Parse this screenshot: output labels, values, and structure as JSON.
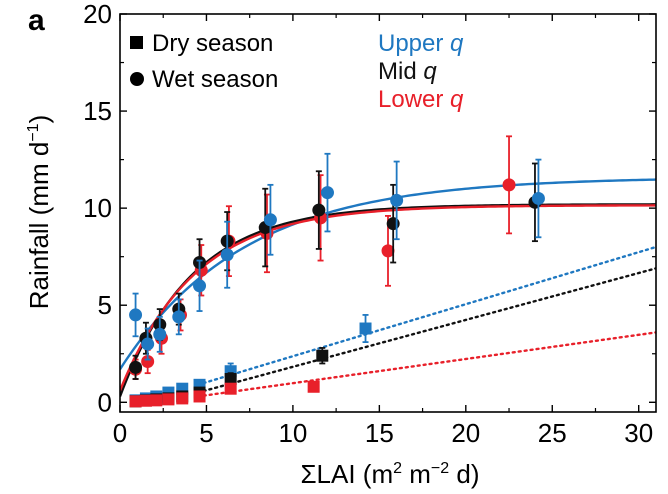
{
  "panel_label": "a",
  "legend": {
    "markers": [
      {
        "shape": "square",
        "label": "Dry season"
      },
      {
        "shape": "circle",
        "label": "Wet season"
      }
    ],
    "colors": [
      {
        "prefix": "Upper ",
        "q": "q",
        "color": "#1f78c1"
      },
      {
        "prefix": "Mid ",
        "q": "q",
        "color": "#111111"
      },
      {
        "prefix": "Lower ",
        "q": "q",
        "color": "#e8202a"
      }
    ]
  },
  "chart_data": {
    "type": "scatter",
    "title": "",
    "xlabel": "ΣLAI (m² m⁻² d)",
    "ylabel": "Rainfall (mm d⁻¹)",
    "xlabel_parts": {
      "base": "ΣLAI (m",
      "sup1": "2",
      "mid": " m",
      "sup2": "−2",
      "end": " d)"
    },
    "ylabel_parts": {
      "base": "Rainfall (mm d",
      "sup": "−1",
      "end": ")"
    },
    "xlim": [
      0,
      31
    ],
    "ylim": [
      -0.5,
      20
    ],
    "xticks": [
      0,
      5,
      10,
      15,
      20,
      25,
      30
    ],
    "yticks": [
      0,
      5,
      10,
      15,
      20
    ],
    "grid": false,
    "legend_position": "top",
    "series": [
      {
        "name": "Upper q",
        "color": "#1f78c1",
        "wet": [
          [
            0.9,
            4.5,
            1.1
          ],
          [
            1.6,
            3.0,
            0.8
          ],
          [
            2.3,
            3.5,
            0.9
          ],
          [
            3.4,
            4.4,
            0.9
          ],
          [
            4.6,
            6.0,
            1.3
          ],
          [
            6.2,
            7.6,
            1.7
          ],
          [
            8.7,
            9.4,
            1.8
          ],
          [
            12.0,
            10.8,
            2.0
          ],
          [
            16.0,
            10.4,
            2.0
          ],
          [
            24.2,
            10.5,
            2.0
          ]
        ],
        "dry": [
          [
            0.9,
            0.1,
            0.1
          ],
          [
            1.5,
            0.2,
            0.1
          ],
          [
            2.1,
            0.3,
            0.1
          ],
          [
            2.8,
            0.5,
            0.15
          ],
          [
            3.6,
            0.7,
            0.2
          ],
          [
            4.6,
            0.9,
            0.2
          ],
          [
            6.4,
            1.6,
            0.4
          ],
          [
            14.2,
            3.8,
            0.7
          ]
        ],
        "fit": {
          "asymptote": 11.6,
          "y0": 1.7,
          "k": 0.14
        },
        "trend": {
          "x0": 4.5,
          "y0": 0.9,
          "x1": 31,
          "y1": 8.0
        }
      },
      {
        "name": "Mid q",
        "color": "#111111",
        "wet": [
          [
            0.9,
            1.8,
            0.6
          ],
          [
            1.5,
            3.3,
            0.8
          ],
          [
            2.3,
            4.0,
            0.8
          ],
          [
            3.4,
            4.8,
            0.8
          ],
          [
            4.6,
            7.2,
            1.2
          ],
          [
            6.2,
            8.3,
            1.5
          ],
          [
            8.4,
            9.0,
            2.0
          ],
          [
            11.5,
            9.9,
            2.0
          ],
          [
            15.8,
            9.2,
            2.0
          ],
          [
            24.0,
            10.3,
            2.0
          ]
        ],
        "dry": [
          [
            0.9,
            0.05,
            0.1
          ],
          [
            1.5,
            0.1,
            0.1
          ],
          [
            2.1,
            0.15,
            0.1
          ],
          [
            2.8,
            0.2,
            0.1
          ],
          [
            3.6,
            0.3,
            0.1
          ],
          [
            4.6,
            0.5,
            0.15
          ],
          [
            6.4,
            1.2,
            0.3
          ],
          [
            11.7,
            2.4,
            0.4
          ]
        ],
        "fit": {
          "asymptote": 10.2,
          "y0": 0.3,
          "k": 0.24
        },
        "trend": {
          "x0": 4.5,
          "y0": 0.5,
          "x1": 31,
          "y1": 6.9
        }
      },
      {
        "name": "Lower q",
        "color": "#e8202a",
        "wet": [
          [
            0.9,
            1.7,
            0.5
          ],
          [
            1.6,
            2.1,
            0.6
          ],
          [
            2.4,
            3.3,
            0.8
          ],
          [
            3.5,
            4.5,
            0.8
          ],
          [
            4.7,
            6.8,
            1.3
          ],
          [
            6.3,
            8.3,
            1.8
          ],
          [
            8.5,
            8.7,
            2.0
          ],
          [
            11.6,
            9.5,
            2.2
          ],
          [
            15.5,
            7.8,
            1.8
          ],
          [
            22.5,
            11.2,
            2.5
          ]
        ],
        "dry": [
          [
            0.9,
            0.05,
            0.05
          ],
          [
            1.5,
            0.08,
            0.05
          ],
          [
            2.1,
            0.1,
            0.05
          ],
          [
            2.8,
            0.15,
            0.05
          ],
          [
            3.6,
            0.2,
            0.05
          ],
          [
            4.6,
            0.3,
            0.1
          ],
          [
            6.4,
            0.7,
            0.15
          ],
          [
            11.2,
            0.8,
            0.2
          ]
        ],
        "fit": {
          "asymptote": 10.15,
          "y0": 0.6,
          "k": 0.23
        },
        "trend": {
          "x0": 4.5,
          "y0": 0.3,
          "x1": 31,
          "y1": 3.6
        }
      }
    ]
  }
}
